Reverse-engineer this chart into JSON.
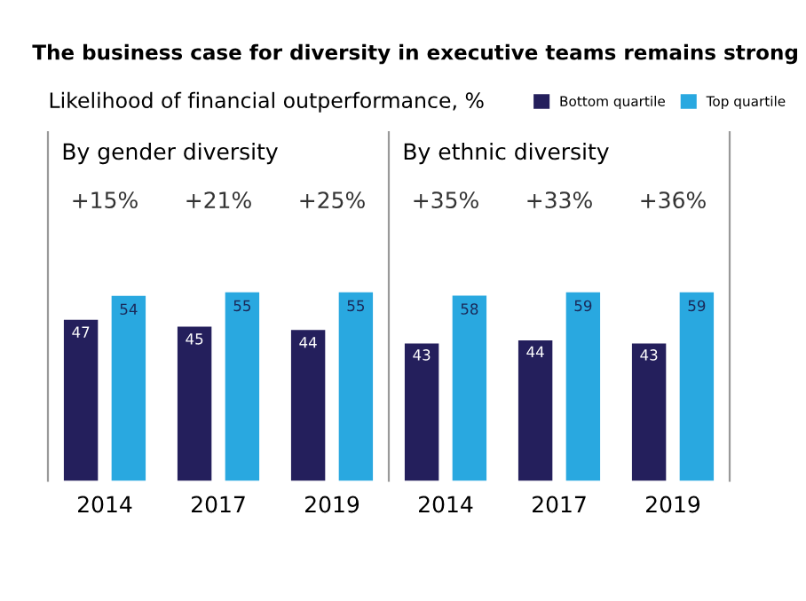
{
  "chart_data": [
    {
      "type": "bar",
      "title": "The business case for diversity in executive teams remains strong",
      "subtitle": "Likelihood of financial outperformance, %",
      "categories": [
        "2014",
        "2017",
        "2019"
      ],
      "data_labels": true,
      "legend": "top right",
      "series": [
        {
          "name": "Bottom quartile",
          "color": "#241f5c",
          "values": [
            47,
            45,
            44
          ]
        },
        {
          "name": "Top quartile",
          "color": "#29a8e0",
          "values": [
            54,
            55,
            55
          ]
        }
      ],
      "annotations": [
        "By gender diversity",
        "+15%",
        "+21%",
        "+25%"
      ]
    },
    {
      "type": "bar",
      "categories": [
        "2014",
        "2017",
        "2019"
      ],
      "data_labels": true,
      "series": [
        {
          "color": "#241f5c",
          "values": [
            43,
            44,
            43
          ]
        },
        {
          "color": "#29a8e0",
          "values": [
            58,
            59,
            59
          ]
        }
      ],
      "annotations": [
        "By ethnic diversity",
        "+35%",
        "+33%",
        "+36%"
      ]
    }
  ]
}
